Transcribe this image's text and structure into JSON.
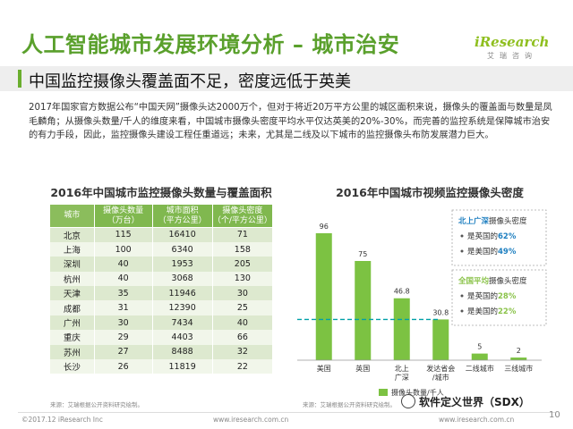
{
  "header": {
    "title": "人工智能城市发展环境分析 – 城市治安",
    "logo": "iResearch",
    "logo_cn": "艾瑞咨询",
    "subtitle": "中国监控摄像头覆盖面不足，密度远低于英美"
  },
  "paragraph": "2017年国家官方数据公布“中国天网”摄像头达2000万个，但对于将近20万平方公里的城区面积来说，摄像头的覆盖面与数量是凤毛麟角；从摄像头数量/千人的维度来看，中国城市摄像头密度平均水平仅达英美的20%-30%，而完善的监控系统是保障城市治安的有力手段，因此，监控摄像头建设工程任重道远；未来，尤其是二线及以下城市的监控摄像头布防发展潜力巨大。",
  "table": {
    "title": "2016年中国城市监控摄像头数量与覆盖面积",
    "headers": [
      "城市",
      "摄像头数量\n（万台）",
      "城市面积\n（平方公里）",
      "摄像头密度\n（个/平方公里）"
    ],
    "rows": [
      [
        "北京",
        "115",
        "16410",
        "71"
      ],
      [
        "上海",
        "100",
        "6340",
        "158"
      ],
      [
        "深圳",
        "40",
        "1953",
        "205"
      ],
      [
        "杭州",
        "40",
        "3068",
        "130"
      ],
      [
        "天津",
        "35",
        "11946",
        "30"
      ],
      [
        "成都",
        "31",
        "12390",
        "25"
      ],
      [
        "广州",
        "30",
        "7434",
        "40"
      ],
      [
        "重庆",
        "29",
        "4403",
        "66"
      ],
      [
        "苏州",
        "27",
        "8488",
        "32"
      ],
      [
        "长沙",
        "26",
        "11819",
        "22"
      ]
    ],
    "source": "来源：艾瑞根据公开资料研究绘制。"
  },
  "chart_data": {
    "type": "bar",
    "title": "2016年中国城市视频监控摄像头密度",
    "categories": [
      "美国",
      "英国",
      "北上\n广深",
      "发达省会\n/城市",
      "二线城市",
      "三线城市"
    ],
    "values": [
      96,
      75,
      46.8,
      30.8,
      5,
      2
    ],
    "value_labels": [
      "96",
      "75",
      "46.8",
      "30.8",
      "5",
      "2"
    ],
    "ylim": [
      0,
      100
    ],
    "bar_color": "#7cc242",
    "reference_line": 30.8,
    "reference_line_color": "#00a0a8",
    "legend": [
      "摄像头数量/千人"
    ],
    "legend_position": "bottom",
    "source": "来源：艾瑞根据公开资料研究绘制。",
    "annotations": [
      {
        "title": "北上广深摄像头密度",
        "title_highlight": "北上广深",
        "highlight_color": "#1e7fc0",
        "items": [
          {
            "prefix": "是英国的",
            "value": "62%"
          },
          {
            "prefix": "是美国的",
            "value": "49%"
          }
        ]
      },
      {
        "title": "全国平均摄像头密度",
        "title_highlight": "全国平均",
        "highlight_color": "#8bc34a",
        "items": [
          {
            "prefix": "是英国的",
            "value": "28%"
          },
          {
            "prefix": "是美国的",
            "value": "22%"
          }
        ]
      }
    ]
  },
  "footer": {
    "left": "©2017.12 iResearch Inc",
    "middle": "www.iresearch.com.cn",
    "right": "www.iresearch.com.cn",
    "watermark": "软件定义世界（SDX）",
    "page": "10"
  }
}
